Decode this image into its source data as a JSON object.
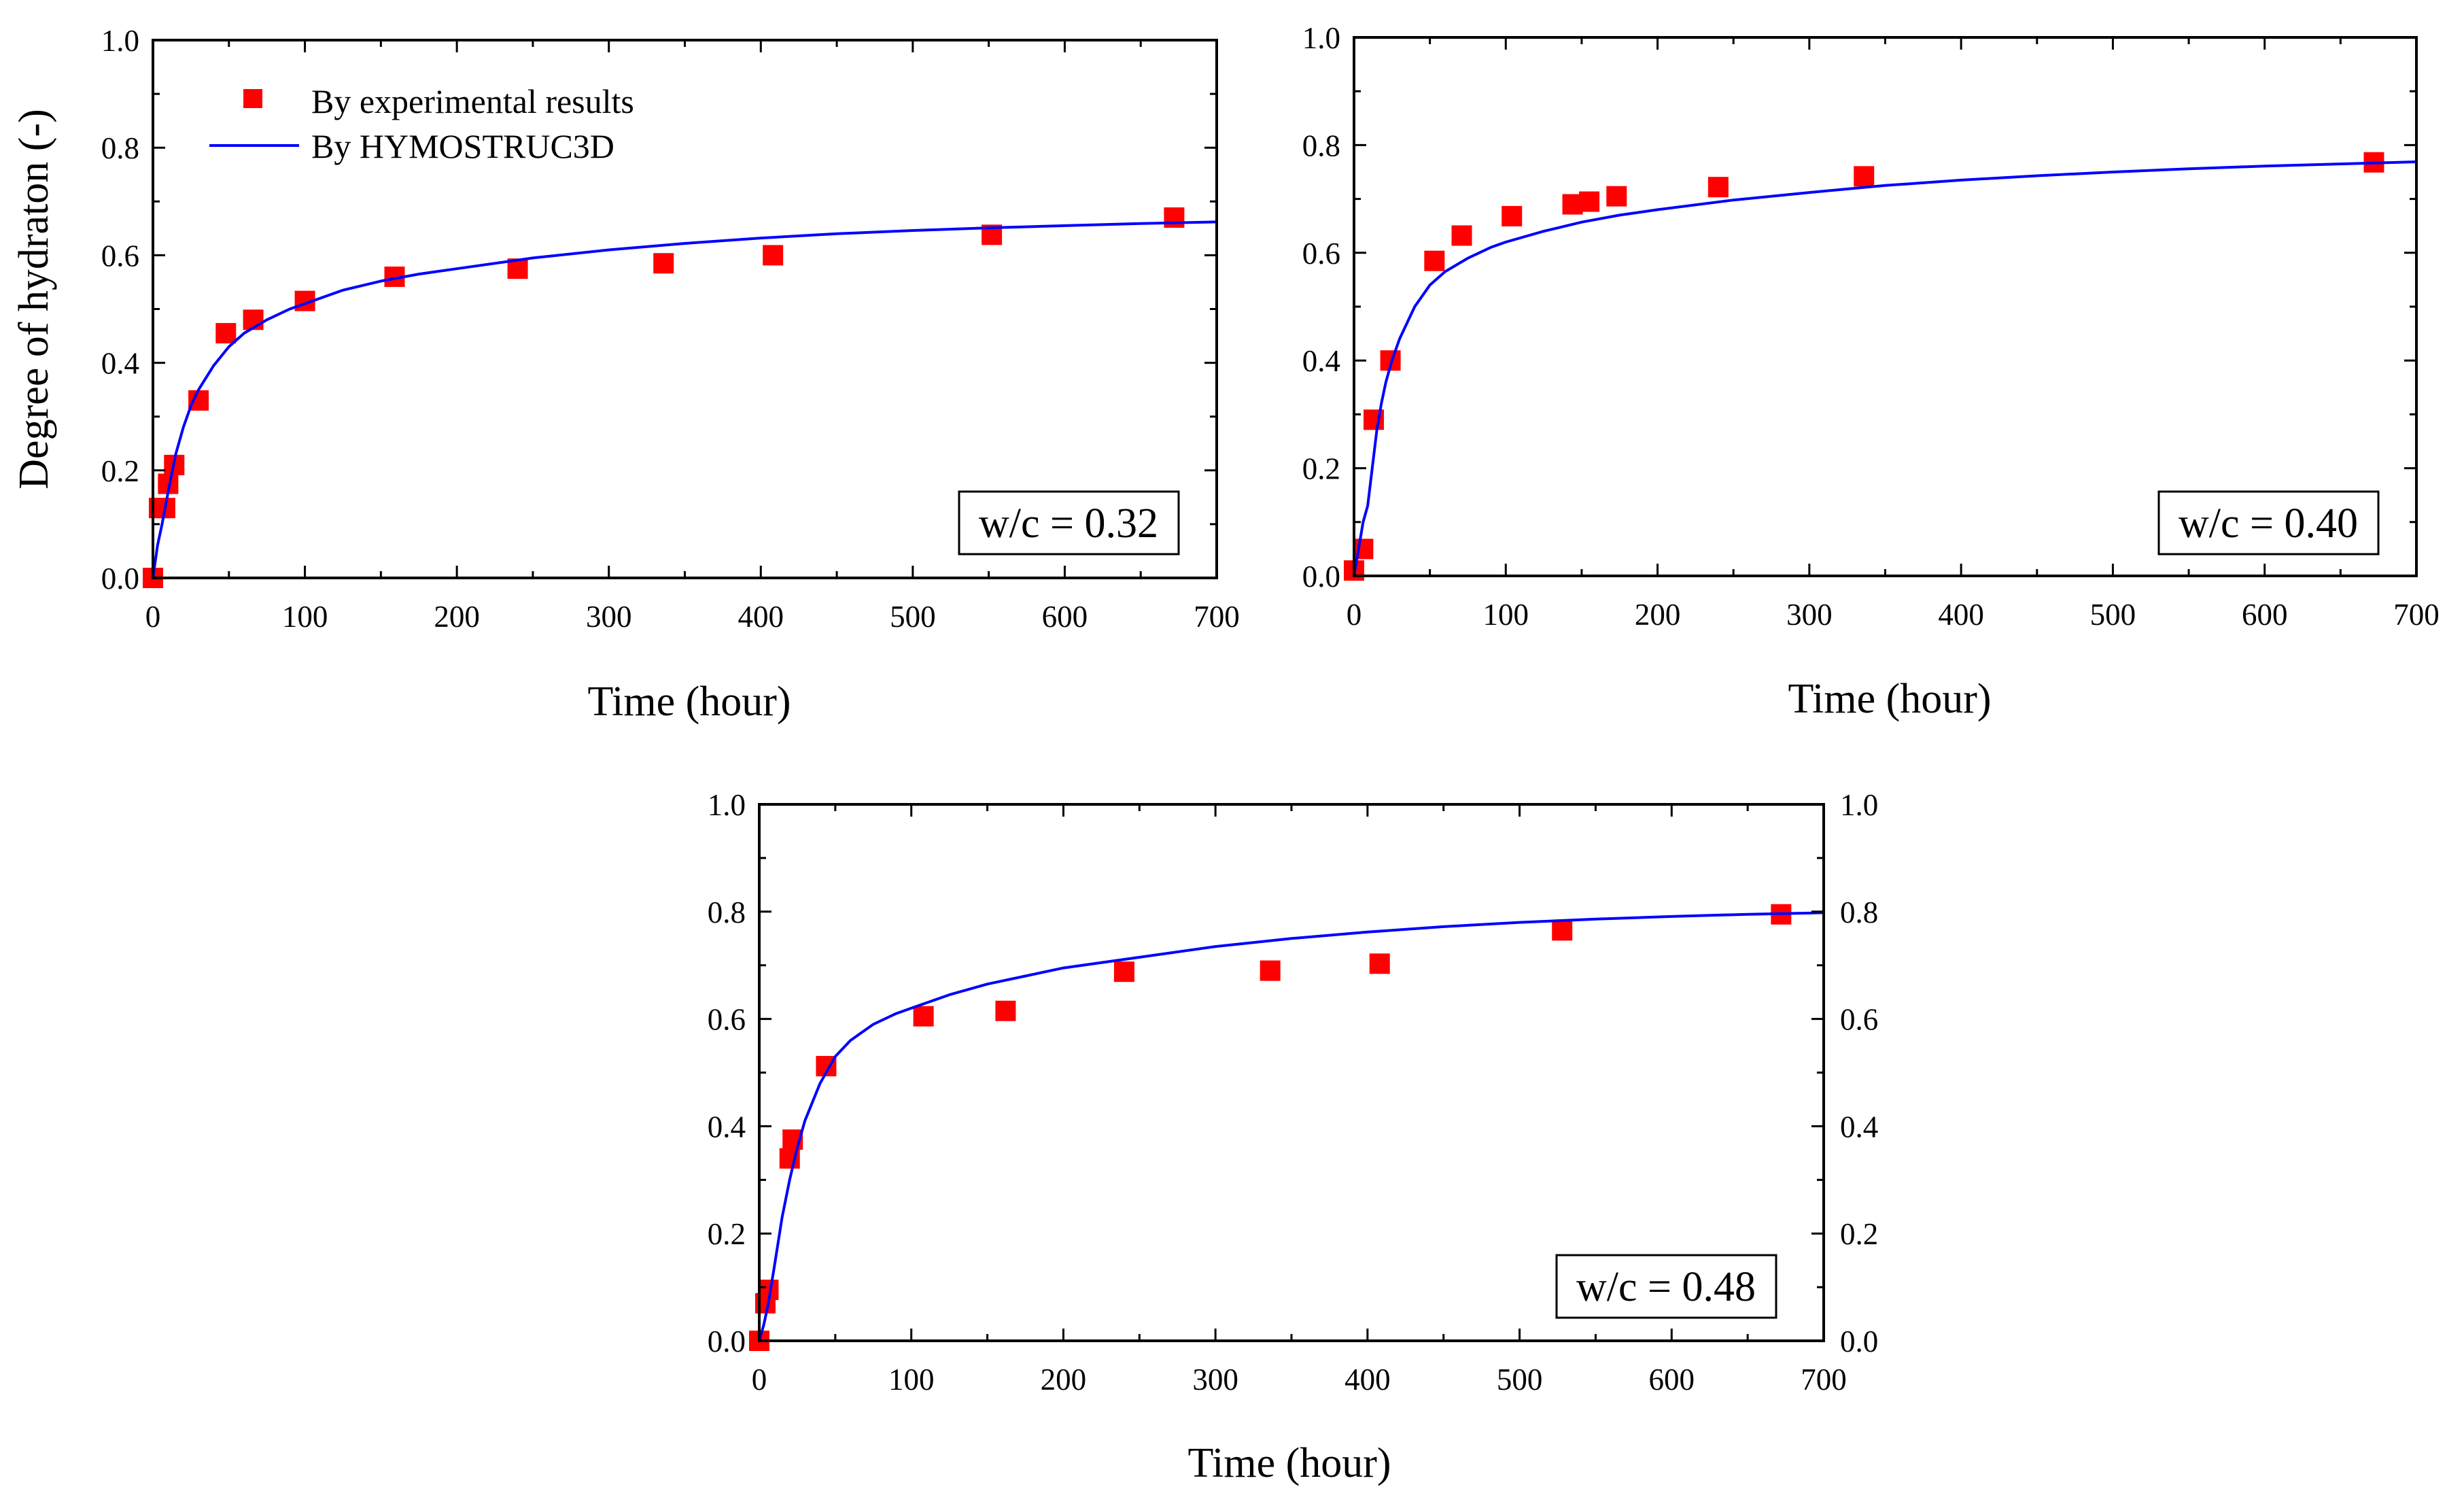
{
  "colors": {
    "experimental": "#ff0000",
    "model": "#0000ff",
    "axis": "#000000"
  },
  "legend": {
    "experimental_label": "By experimental results",
    "model_label": "By HYMOSTRUC3D"
  },
  "chart_data": [
    {
      "type": "scatter",
      "title": "",
      "annotation": "w/c = 0.32",
      "xlabel": "Time (hour)",
      "ylabel": "Degree of hydraton (-)",
      "xlim": [
        0,
        700
      ],
      "ylim": [
        0,
        1.0
      ],
      "x_ticks": [
        "0",
        "100",
        "200",
        "300",
        "400",
        "500",
        "600",
        "700"
      ],
      "y_ticks": [
        "0.0",
        "0.2",
        "0.4",
        "0.6",
        "0.8",
        "1.0"
      ],
      "legend_position": "top-left",
      "series": [
        {
          "name": "By experimental results",
          "kind": "markers",
          "x": [
            0,
            4,
            8,
            10,
            14,
            30,
            48,
            66,
            100,
            159,
            240,
            336,
            408,
            552,
            672
          ],
          "y": [
            0.0,
            0.13,
            0.13,
            0.175,
            0.21,
            0.33,
            0.455,
            0.48,
            0.515,
            0.56,
            0.575,
            0.585,
            0.6,
            0.638,
            0.67
          ]
        },
        {
          "name": "By HYMOSTRUC3D",
          "kind": "line",
          "x": [
            0,
            3,
            6,
            10,
            15,
            20,
            25,
            30,
            40,
            50,
            60,
            75,
            90,
            100,
            125,
            150,
            175,
            200,
            250,
            300,
            350,
            400,
            450,
            500,
            550,
            600,
            650,
            700
          ],
          "y": [
            0.0,
            0.06,
            0.1,
            0.16,
            0.23,
            0.28,
            0.32,
            0.35,
            0.395,
            0.43,
            0.455,
            0.48,
            0.5,
            0.51,
            0.535,
            0.552,
            0.565,
            0.575,
            0.595,
            0.61,
            0.622,
            0.632,
            0.64,
            0.646,
            0.651,
            0.655,
            0.659,
            0.662
          ]
        }
      ]
    },
    {
      "type": "scatter",
      "title": "",
      "annotation": "w/c = 0.40",
      "xlabel": "Time (hour)",
      "ylabel": "",
      "xlim": [
        0,
        700
      ],
      "ylim": [
        0,
        1.0
      ],
      "x_ticks": [
        "0",
        "100",
        "200",
        "300",
        "400",
        "500",
        "600",
        "700"
      ],
      "y_ticks": [
        "0.0",
        "0.2",
        "0.4",
        "0.6",
        "0.8",
        "1.0"
      ],
      "series": [
        {
          "name": "By experimental results",
          "kind": "markers",
          "x": [
            0,
            6,
            13,
            24,
            53,
            71,
            104,
            144,
            155,
            173,
            240,
            336,
            672
          ],
          "y": [
            0.01,
            0.05,
            0.29,
            0.4,
            0.585,
            0.632,
            0.668,
            0.69,
            0.695,
            0.705,
            0.722,
            0.742,
            0.768
          ]
        },
        {
          "name": "By HYMOSTRUC3D",
          "kind": "line",
          "x": [
            0,
            3,
            6,
            9,
            12,
            15,
            18,
            21,
            25,
            30,
            40,
            50,
            60,
            75,
            90,
            100,
            125,
            150,
            175,
            200,
            250,
            300,
            350,
            400,
            450,
            500,
            550,
            600,
            650,
            700
          ],
          "y": [
            0.0,
            0.05,
            0.1,
            0.13,
            0.2,
            0.27,
            0.32,
            0.36,
            0.4,
            0.44,
            0.5,
            0.54,
            0.565,
            0.59,
            0.61,
            0.62,
            0.64,
            0.657,
            0.67,
            0.68,
            0.698,
            0.712,
            0.725,
            0.735,
            0.743,
            0.75,
            0.756,
            0.761,
            0.765,
            0.769
          ]
        }
      ]
    },
    {
      "type": "scatter",
      "title": "",
      "annotation": "w/c = 0.48",
      "xlabel": "Time (hour)",
      "ylabel": "",
      "xlim": [
        0,
        700
      ],
      "ylim": [
        0,
        1.0
      ],
      "x_ticks": [
        "0",
        "100",
        "200",
        "300",
        "400",
        "500",
        "600",
        "700"
      ],
      "y_ticks": [
        "0.0",
        "0.2",
        "0.4",
        "0.6",
        "0.8",
        "1.0"
      ],
      "right_y_ticks": [
        "0.0",
        "0.2",
        "0.4",
        "0.6",
        "0.8",
        "1.0"
      ],
      "series": [
        {
          "name": "By experimental results",
          "kind": "markers",
          "x": [
            0,
            4,
            6,
            20,
            22,
            44,
            108,
            162,
            240,
            336,
            408,
            528,
            672
          ],
          "y": [
            0.0,
            0.07,
            0.095,
            0.34,
            0.375,
            0.512,
            0.605,
            0.615,
            0.688,
            0.69,
            0.703,
            0.765,
            0.795
          ]
        },
        {
          "name": "By HYMOSTRUC3D",
          "kind": "line",
          "x": [
            0,
            3,
            6,
            10,
            15,
            20,
            25,
            30,
            40,
            50,
            60,
            75,
            90,
            100,
            125,
            150,
            175,
            200,
            250,
            300,
            350,
            400,
            450,
            500,
            550,
            600,
            650,
            700
          ],
          "y": [
            0.0,
            0.03,
            0.07,
            0.14,
            0.23,
            0.3,
            0.36,
            0.41,
            0.48,
            0.53,
            0.56,
            0.59,
            0.61,
            0.62,
            0.645,
            0.665,
            0.68,
            0.695,
            0.715,
            0.735,
            0.75,
            0.762,
            0.772,
            0.78,
            0.786,
            0.791,
            0.795,
            0.798
          ]
        }
      ]
    }
  ]
}
